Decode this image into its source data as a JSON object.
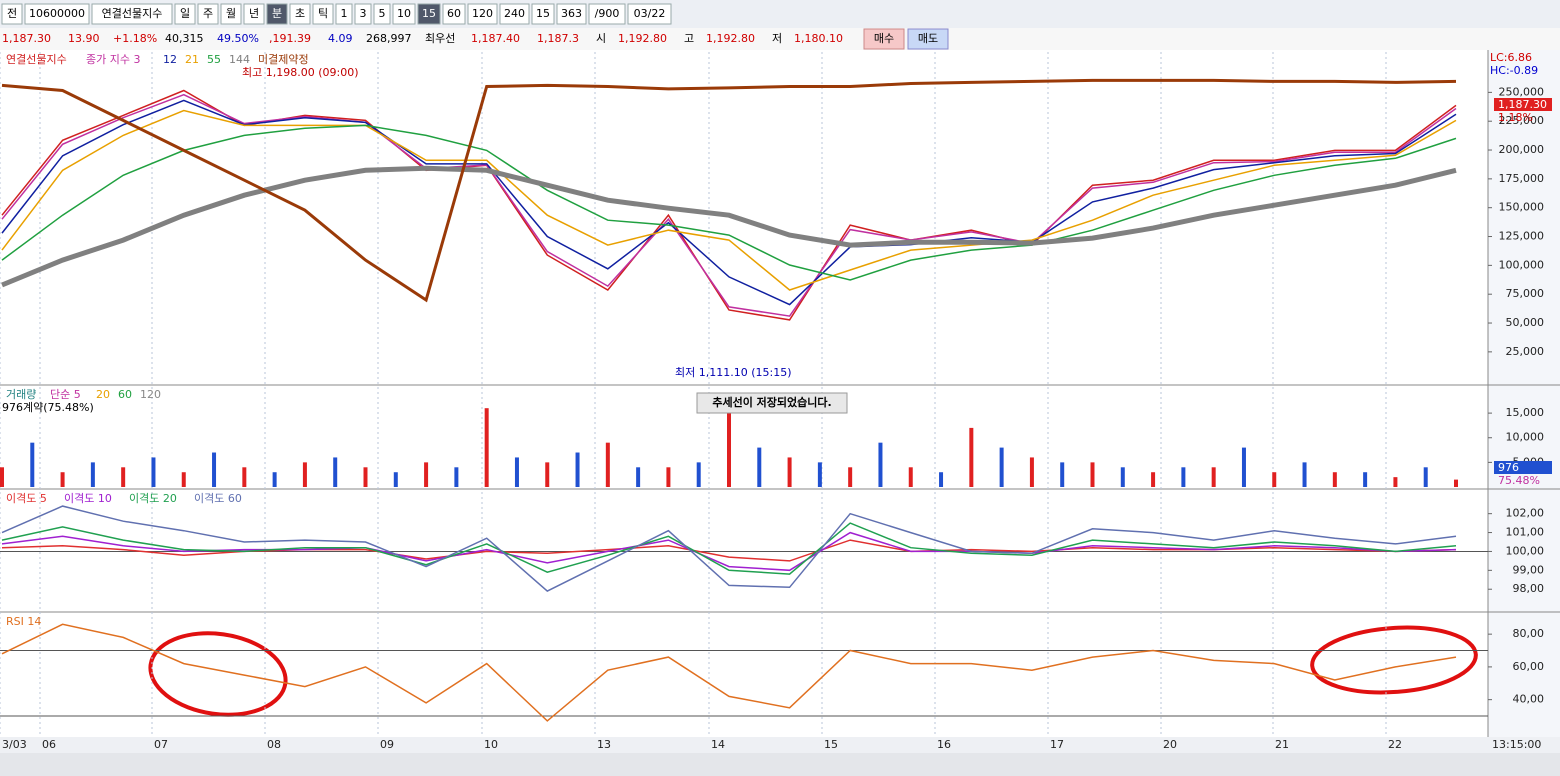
{
  "toolbar": {
    "items": [
      "전",
      "10600000",
      "연결선물지수",
      "일",
      "주",
      "월",
      "년",
      "분",
      "초",
      "틱",
      "1",
      "3",
      "5",
      "10",
      "15",
      "60",
      "120",
      "240",
      "15",
      "363",
      "/900",
      "03/22"
    ],
    "selected": [
      7,
      14
    ]
  },
  "quote": {
    "items": [
      {
        "text": "1,187.30",
        "color": "#d00000"
      },
      {
        "text": "13.90",
        "color": "#d00000"
      },
      {
        "text": "+1.18%",
        "color": "#d00000"
      },
      {
        "text": "40,315",
        "color": "#000000"
      },
      {
        "text": "49.50%",
        "color": "#0000c0"
      },
      {
        "text": ",191.39",
        "color": "#d00000"
      },
      {
        "text": "4.09",
        "color": "#0000c0"
      },
      {
        "text": "268,997",
        "color": "#000000"
      },
      {
        "text": "최우선",
        "color": "#000000"
      },
      {
        "text": "1,187.40",
        "color": "#d00000"
      },
      {
        "text": "1,187.3",
        "color": "#d00000"
      },
      {
        "text": "시",
        "color": "#000000"
      },
      {
        "text": "1,192.80",
        "color": "#d00000"
      },
      {
        "text": "고",
        "color": "#000000"
      },
      {
        "text": "1,192.80",
        "color": "#d00000"
      },
      {
        "text": "저",
        "color": "#000000"
      },
      {
        "text": "1,180.10",
        "color": "#d00000"
      }
    ],
    "buy": "매수",
    "sell": "매도"
  },
  "x_axis": {
    "labels": [
      "3/03",
      "06",
      "07",
      "08",
      "09",
      "10",
      "13",
      "14",
      "15",
      "16",
      "17",
      "20",
      "21",
      "22"
    ],
    "time": "13:15:00"
  },
  "chart_data": [
    {
      "type": "line",
      "panel": "price",
      "ylim": [
        -2000,
        285000
      ],
      "yticks": [
        {
          "value": 25000,
          "label": "25,000"
        },
        {
          "value": 50000,
          "label": "50,000"
        },
        {
          "value": 75000,
          "label": "75,000"
        },
        {
          "value": 100000,
          "label": "100,000"
        },
        {
          "value": 125000,
          "label": "125,000"
        },
        {
          "value": 150000,
          "label": "150,000"
        },
        {
          "value": 175000,
          "label": "175,000"
        },
        {
          "value": 200000,
          "label": "200,000"
        },
        {
          "value": 225000,
          "label": "225,000"
        },
        {
          "value": 250000,
          "label": "250,000"
        }
      ],
      "series": [
        {
          "name": "연결선물지수",
          "color": "#d02020",
          "values": [
            143500,
            208400,
            230000,
            251600,
            221400,
            230000,
            225700,
            182400,
            186800,
            108900,
            78600,
            143500,
            61300,
            52700,
            134900,
            121900,
            130500,
            117600,
            169500,
            173800,
            191100,
            191100,
            199700,
            199700,
            238700
          ]
        },
        {
          "name": "종가 지수 3",
          "color": "#c030a0",
          "values": [
            140000,
            205000,
            228000,
            248000,
            223000,
            229000,
            224000,
            184000,
            187000,
            112000,
            82000,
            140000,
            64000,
            56000,
            131000,
            122000,
            129000,
            119000,
            167000,
            172000,
            189000,
            190000,
            198000,
            198000,
            236000
          ]
        },
        {
          "name": "12",
          "color": "#1020a0",
          "values": [
            128000,
            195000,
            222000,
            243000,
            222000,
            228000,
            224000,
            188000,
            188000,
            125000,
            97000,
            137000,
            90000,
            66000,
            116000,
            118000,
            124000,
            120000,
            155000,
            167000,
            183000,
            189000,
            195000,
            197000,
            231000
          ]
        },
        {
          "name": "21",
          "color": "#e8a000",
          "values": [
            113200,
            182400,
            212700,
            234300,
            221400,
            221400,
            221400,
            191100,
            191100,
            143500,
            117600,
            130500,
            121900,
            78600,
            96000,
            113200,
            117600,
            121900,
            139200,
            160800,
            173800,
            186800,
            191100,
            195400,
            225700
          ]
        },
        {
          "name": "55",
          "color": "#20a040",
          "values": [
            104600,
            143500,
            178100,
            199700,
            212700,
            218800,
            221400,
            212700,
            199700,
            165100,
            139200,
            134900,
            126200,
            100300,
            87300,
            104600,
            113200,
            117600,
            130500,
            147800,
            165100,
            178100,
            186800,
            192800,
            210100
          ]
        },
        {
          "name": "144",
          "color": "#808080",
          "width": 5,
          "values": [
            83000,
            104600,
            121900,
            143500,
            160800,
            173800,
            182400,
            184200,
            182400,
            169500,
            156500,
            149600,
            143500,
            126200,
            117600,
            120100,
            120100,
            119300,
            123600,
            132300,
            143500,
            152200,
            160800,
            169500,
            182400
          ]
        },
        {
          "name": "미결제약정",
          "color": "#9a3a08",
          "width": 3,
          "values": [
            256000,
            251600,
            225700,
            199700,
            173800,
            147800,
            104600,
            70000,
            255100,
            256000,
            255100,
            253000,
            253900,
            255100,
            255100,
            257700,
            258600,
            259500,
            260400,
            260400,
            260400,
            259500,
            259500,
            258600,
            259500
          ]
        }
      ],
      "annotations": {
        "high": "최고 1,198.00 (09:00)",
        "low": "최저 1,111.10 (15:15)",
        "lc": "LC:6.86",
        "hc": "HC:-0.89",
        "last": "1,187.30",
        "change": "1.18%"
      }
    },
    {
      "type": "bar",
      "panel": "volume",
      "legend": [
        "거래량",
        "단순 5",
        "20",
        "60",
        "120"
      ],
      "info": "976계약(75.48%)",
      "notice": "추세선이 저장되었습니다.",
      "ylim": [
        0,
        20300
      ],
      "yticks": [
        {
          "value": 5000,
          "label": "5,000"
        },
        {
          "value": 10000,
          "label": "10,000"
        },
        {
          "value": 15000,
          "label": "15,000"
        }
      ],
      "colors": [
        "#e02020",
        "#2050d0"
      ],
      "values": [
        4000,
        9000,
        3000,
        5000,
        4000,
        6000,
        3000,
        7000,
        4000,
        3000,
        5000,
        6000,
        4000,
        3000,
        5000,
        4000,
        16000,
        6000,
        5000,
        7000,
        9000,
        4000,
        4000,
        5000,
        15000,
        8000,
        6000,
        5000,
        4000,
        9000,
        4000,
        3000,
        12000,
        8000,
        6000,
        5000,
        5000,
        4000,
        3000,
        4000,
        4000,
        8000,
        3000,
        5000,
        3000,
        3000,
        2000,
        4000,
        1500
      ],
      "annotations": {
        "last": "976",
        "ratio": "75.48%"
      }
    },
    {
      "type": "line",
      "panel": "disparity",
      "ylim": [
        96.9,
        103.2
      ],
      "yticks": [
        {
          "value": 98,
          "label": "98,00"
        },
        {
          "value": 99,
          "label": "99,00"
        },
        {
          "value": 100,
          "label": "100,00"
        },
        {
          "value": 101,
          "label": "101,00"
        },
        {
          "value": 102,
          "label": "102,00"
        }
      ],
      "hlines": [
        100
      ],
      "series": [
        {
          "name": "이격도 5",
          "color": "#e03030",
          "values": [
            100.2,
            100.3,
            100.1,
            99.8,
            100.0,
            100.1,
            100.1,
            99.6,
            100.0,
            99.9,
            100.1,
            100.3,
            99.7,
            99.5,
            100.6,
            100.0,
            100.1,
            100.0,
            100.2,
            100.1,
            100.1,
            100.2,
            100.1,
            100.0,
            100.1
          ]
        },
        {
          "name": "이격도 10",
          "color": "#a020d0",
          "values": [
            100.4,
            100.8,
            100.3,
            100.0,
            100.1,
            100.1,
            100.2,
            99.5,
            100.1,
            99.4,
            100.0,
            100.6,
            99.2,
            99.0,
            101.0,
            100.0,
            100.0,
            99.9,
            100.3,
            100.2,
            100.1,
            100.3,
            100.2,
            100.0,
            100.1
          ]
        },
        {
          "name": "이격도 20",
          "color": "#20a050",
          "values": [
            100.6,
            101.3,
            100.6,
            100.1,
            100.0,
            100.2,
            100.2,
            99.3,
            100.4,
            98.9,
            99.8,
            100.8,
            99.0,
            98.8,
            101.5,
            100.2,
            99.9,
            99.8,
            100.6,
            100.4,
            100.2,
            100.5,
            100.3,
            100.0,
            100.3
          ]
        },
        {
          "name": "이격도 60",
          "color": "#6070b0",
          "values": [
            101.0,
            102.4,
            101.6,
            101.1,
            100.5,
            100.6,
            100.5,
            99.2,
            100.7,
            97.9,
            99.5,
            101.1,
            98.2,
            98.1,
            102.0,
            101.0,
            100.0,
            99.9,
            101.2,
            101.0,
            100.6,
            101.1,
            100.7,
            100.4,
            100.8
          ]
        }
      ]
    },
    {
      "type": "line",
      "panel": "rsi",
      "ylim": [
        17.2,
        92.3
      ],
      "yticks": [
        {
          "value": 40,
          "label": "40,00"
        },
        {
          "value": 60,
          "label": "60,00"
        },
        {
          "value": 80,
          "label": "80,00"
        }
      ],
      "hlines": [
        70,
        30
      ],
      "series": [
        {
          "name": "RSI 14",
          "color": "#e07020",
          "values": [
            68,
            86,
            78,
            62,
            55,
            48,
            60,
            38,
            62,
            27,
            58,
            66,
            42,
            35,
            70,
            62,
            62,
            58,
            66,
            70,
            64,
            62,
            52,
            60,
            66
          ]
        }
      ]
    }
  ]
}
